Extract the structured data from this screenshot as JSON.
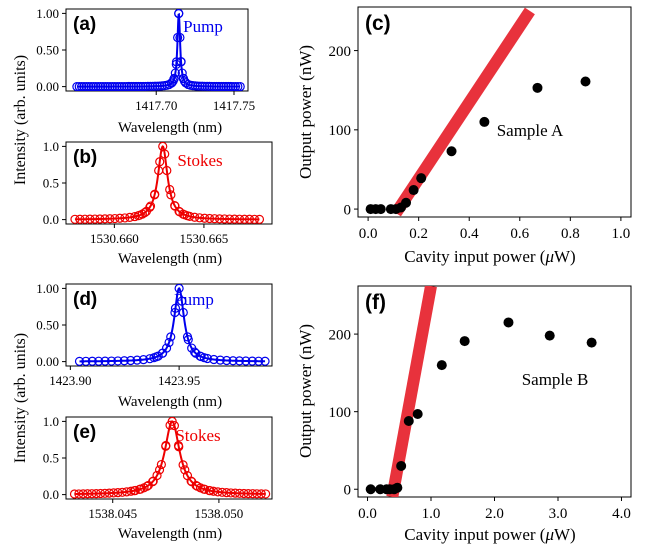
{
  "shared_labels": {
    "intensity_ylabel": "Intensity (arb. units)",
    "output_ylabel": "Output power (nW)",
    "input_xlabel": "Cavity input power (",
    "input_xlabel_mu": "μ",
    "input_xlabel_tail": "W)"
  },
  "chart_data": [
    {
      "id": "a",
      "label": "(a)",
      "type": "line",
      "annotation": "Pump",
      "color": "#0000ee",
      "xlabel": "Wavelength (nm)",
      "xlim": [
        1417.642,
        1417.759
      ],
      "ylim": [
        -0.06,
        1.06
      ],
      "xticks": [
        1417.7,
        1417.75
      ],
      "xtick_labels": [
        "1417.70",
        "1417.75"
      ],
      "yticks": [
        0,
        0.5,
        1
      ],
      "ytick_labels": [
        "0.00",
        "0.50",
        "1.00"
      ],
      "center": 1417.7145,
      "fwhm": 0.0021,
      "x_range": [
        1417.649,
        1417.754
      ],
      "n_markers": 70
    },
    {
      "id": "b",
      "label": "(b)",
      "type": "line",
      "annotation": "Stokes",
      "color": "#ee0000",
      "xlabel": "Wavelength (nm)",
      "xlim": [
        1530.6573,
        1530.6688
      ],
      "ylim": [
        -0.06,
        1.06
      ],
      "xticks": [
        1530.66,
        1530.665
      ],
      "xtick_labels": [
        "1530.660",
        "1530.665"
      ],
      "yticks": [
        0,
        0.5,
        1
      ],
      "ytick_labels": [
        "0.0",
        "0.5",
        "1.0"
      ],
      "center": 1530.6627,
      "fwhm": 0.00065,
      "x_range": [
        1530.6578,
        1530.6681
      ],
      "n_markers": 38
    },
    {
      "id": "d",
      "label": "(d)",
      "type": "line",
      "annotation": "Pump",
      "color": "#0000ee",
      "xlabel": "Wavelength (nm)",
      "xlim": [
        1423.898,
        1423.9927
      ],
      "ylim": [
        -0.06,
        1.06
      ],
      "xticks": [
        1423.9,
        1423.95
      ],
      "xtick_labels": [
        "1423.90",
        "1423.95"
      ],
      "yticks": [
        0,
        0.5,
        1
      ],
      "ytick_labels": [
        "0.00",
        "0.50",
        "1.00"
      ],
      "center": 1423.95,
      "fwhm": 0.0055,
      "x_range": [
        1423.9042,
        1423.9895
      ],
      "n_markers": 30
    },
    {
      "id": "e",
      "label": "(e)",
      "type": "line",
      "annotation": "Stokes",
      "color": "#ee0000",
      "xlabel": "Wavelength (nm)",
      "xlim": [
        1538.0428,
        1538.0525
      ],
      "ylim": [
        -0.06,
        1.06
      ],
      "xticks": [
        1538.045,
        1538.05
      ],
      "xtick_labels": [
        "1538.045",
        "1538.050"
      ],
      "yticks": [
        0,
        0.5,
        1
      ],
      "ytick_labels": [
        "0.0",
        "0.5",
        "1.0"
      ],
      "center": 1538.0478,
      "fwhm": 0.00085,
      "x_range": [
        1538.0432,
        1538.0522
      ],
      "n_markers": 45
    },
    {
      "id": "c",
      "label": "(c)",
      "type": "scatter",
      "annotation": "Sample A",
      "xlim": [
        -0.04,
        1.04
      ],
      "ylim": [
        -10,
        255
      ],
      "xticks": [
        0,
        0.2,
        0.4,
        0.6,
        0.8,
        1.0
      ],
      "xtick_labels": [
        "0.0",
        "0.2",
        "0.4",
        "0.6",
        "0.8",
        "1.0"
      ],
      "yticks": [
        0,
        100,
        200
      ],
      "ytick_labels": [
        "0",
        "100",
        "200"
      ],
      "points": [
        [
          0.01,
          0
        ],
        [
          0.03,
          0
        ],
        [
          0.05,
          0
        ],
        [
          0.09,
          0
        ],
        [
          0.11,
          0
        ],
        [
          0.13,
          2
        ],
        [
          0.15,
          8
        ],
        [
          0.18,
          24
        ],
        [
          0.21,
          39
        ],
        [
          0.33,
          73
        ],
        [
          0.46,
          110
        ],
        [
          0.67,
          153
        ],
        [
          0.86,
          161
        ]
      ],
      "fit_line": [
        [
          0.11,
          -5
        ],
        [
          0.64,
          250
        ]
      ],
      "fit_color": "#e8323c"
    },
    {
      "id": "f",
      "label": "(f)",
      "type": "scatter",
      "annotation": "Sample B",
      "xlim": [
        -0.15,
        4.15
      ],
      "ylim": [
        -10,
        262
      ],
      "xticks": [
        0,
        1,
        2,
        3,
        4
      ],
      "xtick_labels": [
        "0.0",
        "1.0",
        "2.0",
        "3.0",
        "4.0"
      ],
      "yticks": [
        0,
        100,
        200
      ],
      "ytick_labels": [
        "0",
        "100",
        "200"
      ],
      "points": [
        [
          0.05,
          0
        ],
        [
          0.2,
          0
        ],
        [
          0.3,
          0
        ],
        [
          0.35,
          0
        ],
        [
          0.42,
          0
        ],
        [
          0.47,
          2
        ],
        [
          0.53,
          30
        ],
        [
          0.65,
          88
        ],
        [
          0.79,
          97
        ],
        [
          1.17,
          160
        ],
        [
          1.53,
          191
        ],
        [
          2.22,
          215
        ],
        [
          2.87,
          198
        ],
        [
          3.53,
          189
        ]
      ],
      "fit_line": [
        [
          0.39,
          -10
        ],
        [
          1.0,
          262
        ]
      ],
      "fit_color": "#e8323c"
    }
  ]
}
